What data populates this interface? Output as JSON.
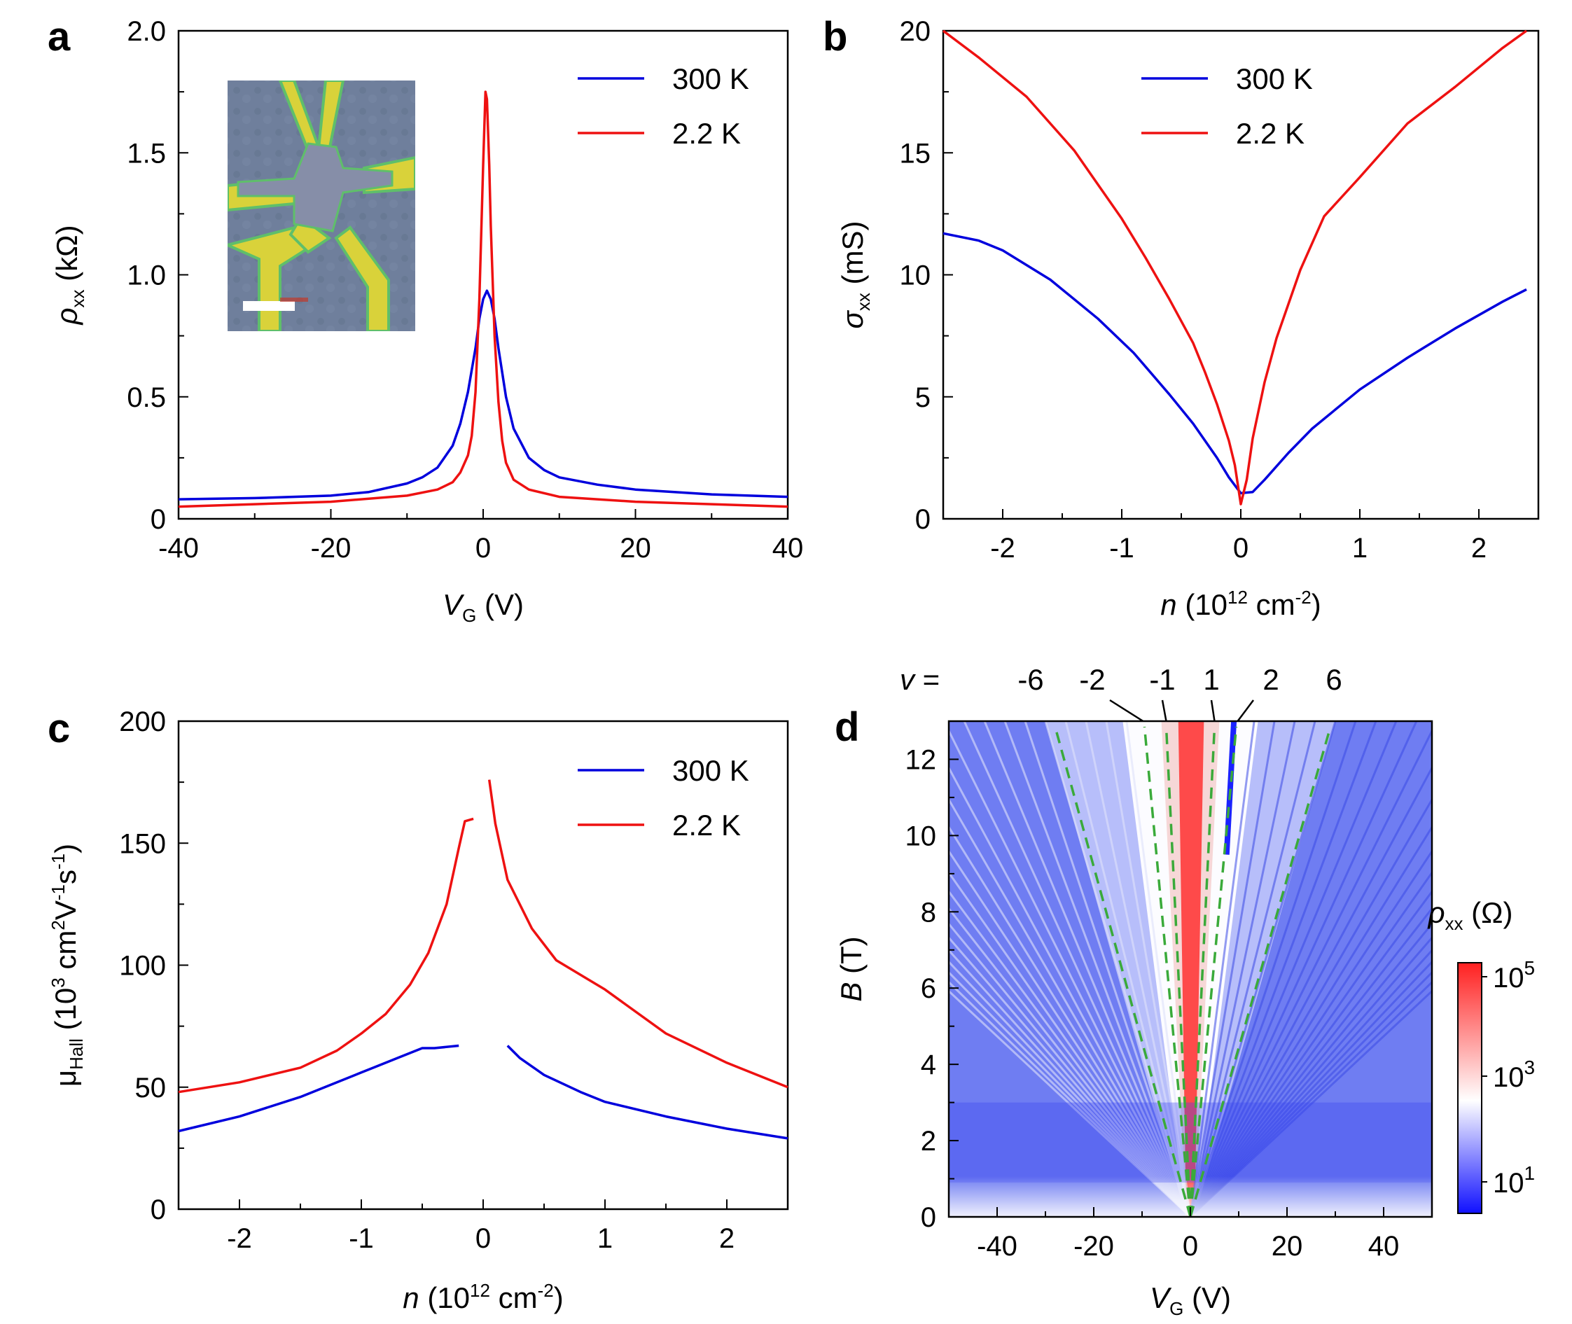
{
  "chart_data": [
    {
      "panel": "a",
      "type": "line",
      "xlabel_main": "V",
      "xlabel_sub": "G",
      "xlabel_unit": "(V)",
      "ylabel_main": "ρ",
      "ylabel_sub": "xx",
      "ylabel_unit": "(kΩ)",
      "xlim": [
        -40,
        40
      ],
      "ylim": [
        0,
        2.0
      ],
      "xticks": [
        "-40",
        "-20",
        "0",
        "20",
        "40"
      ],
      "yticks": [
        "0",
        "0.5",
        "1.0",
        "1.5",
        "2.0"
      ],
      "legend_position": "top-right",
      "inset": "optical image of device",
      "series": [
        {
          "name": "300 K",
          "color": "#0000dd",
          "x": [
            -40,
            -30,
            -20,
            -15,
            -10,
            -8,
            -6,
            -4,
            -3,
            -2,
            -1,
            -0.5,
            0,
            0.5,
            1,
            1.5,
            2,
            3,
            4,
            6,
            8,
            10,
            15,
            20,
            30,
            40
          ],
          "y": [
            0.08,
            0.085,
            0.095,
            0.11,
            0.145,
            0.17,
            0.21,
            0.3,
            0.39,
            0.52,
            0.7,
            0.82,
            0.9,
            0.935,
            0.9,
            0.82,
            0.7,
            0.5,
            0.37,
            0.25,
            0.2,
            0.17,
            0.14,
            0.12,
            0.1,
            0.09
          ]
        },
        {
          "name": "2.2 K",
          "color": "#ee1111",
          "x": [
            -40,
            -30,
            -20,
            -10,
            -6,
            -4,
            -3,
            -2,
            -1.5,
            -1,
            -0.5,
            0,
            0.3,
            0.5,
            0.8,
            1,
            1.5,
            2,
            2.5,
            3,
            4,
            6,
            10,
            20,
            30,
            40
          ],
          "y": [
            0.05,
            0.06,
            0.07,
            0.095,
            0.12,
            0.15,
            0.19,
            0.26,
            0.34,
            0.52,
            0.9,
            1.45,
            1.75,
            1.72,
            1.45,
            1.2,
            0.75,
            0.48,
            0.32,
            0.23,
            0.16,
            0.12,
            0.09,
            0.07,
            0.06,
            0.05
          ]
        }
      ]
    },
    {
      "panel": "b",
      "type": "line",
      "xlabel_main": "n",
      "xlabel_unit_pre": "(10",
      "xlabel_exp": "12",
      "xlabel_unit_post": " cm",
      "xlabel_exp2": "-2",
      "xlabel_close": ")",
      "ylabel_main": "σ",
      "ylabel_sub": "xx",
      "ylabel_unit": "(mS)",
      "xlim": [
        -2.5,
        2.5
      ],
      "ylim": [
        0,
        20
      ],
      "xticks": [
        "-2",
        "-1",
        "0",
        "1",
        "2"
      ],
      "yticks": [
        "0",
        "5",
        "10",
        "15",
        "20"
      ],
      "legend_position": "top-center",
      "series": [
        {
          "name": "300 K",
          "color": "#0000dd",
          "x": [
            -2.5,
            -2.2,
            -2,
            -1.6,
            -1.2,
            -0.9,
            -0.6,
            -0.4,
            -0.2,
            -0.1,
            0,
            0.1,
            0.2,
            0.4,
            0.6,
            1,
            1.4,
            1.8,
            2.2,
            2.4
          ],
          "y": [
            11.7,
            11.4,
            11.0,
            9.8,
            8.2,
            6.8,
            5.1,
            3.9,
            2.5,
            1.7,
            1.05,
            1.1,
            1.6,
            2.7,
            3.7,
            5.3,
            6.6,
            7.8,
            8.9,
            9.4
          ]
        },
        {
          "name": "2.2 K",
          "color": "#ee1111",
          "x": [
            -2.5,
            -2.2,
            -1.8,
            -1.4,
            -1.0,
            -0.8,
            -0.6,
            -0.4,
            -0.3,
            -0.2,
            -0.1,
            -0.05,
            0,
            0.05,
            0.1,
            0.2,
            0.3,
            0.5,
            0.7,
            1.0,
            1.4,
            1.8,
            2.2,
            2.4
          ],
          "y": [
            20,
            18.9,
            17.3,
            15.1,
            12.3,
            10.7,
            9.0,
            7.2,
            6.0,
            4.7,
            3.2,
            2.2,
            0.6,
            1.6,
            3.3,
            5.6,
            7.4,
            10.2,
            12.4,
            14.0,
            16.2,
            17.7,
            19.3,
            20
          ]
        }
      ]
    },
    {
      "panel": "c",
      "type": "line",
      "xlabel_main": "n",
      "xlabel_unit_pre": "(10",
      "xlabel_exp": "12",
      "xlabel_unit_post": " cm",
      "xlabel_exp2": "-2",
      "xlabel_close": ")",
      "ylabel_main": "μ",
      "ylabel_sub": "Hall",
      "ylabel_unit_pre": "(10",
      "ylabel_exp": "3",
      "ylabel_unit_mid": " cm",
      "ylabel_exp2": "2",
      "ylabel_unit_mid2": "V",
      "ylabel_exp3": "-1",
      "ylabel_unit_mid3": "s",
      "ylabel_exp4": "-1",
      "ylabel_close": ")",
      "xlim": [
        -2.5,
        2.5
      ],
      "ylim": [
        0,
        200
      ],
      "xticks": [
        "-2",
        "-1",
        "0",
        "1",
        "2"
      ],
      "yticks": [
        "0",
        "50",
        "100",
        "150",
        "200"
      ],
      "legend_position": "top-right",
      "series": [
        {
          "name": "300 K",
          "color": "#0000dd",
          "segments": [
            {
              "x": [
                -2.5,
                -2,
                -1.5,
                -1,
                -0.7,
                -0.5,
                -0.4,
                -0.2
              ],
              "y": [
                32,
                38,
                46,
                56,
                62,
                66,
                66,
                67
              ]
            },
            {
              "x": [
                0.2,
                0.3,
                0.5,
                0.8,
                1,
                1.5,
                2,
                2.5
              ],
              "y": [
                67,
                62,
                55,
                48,
                44,
                38,
                33,
                29
              ]
            }
          ]
        },
        {
          "name": "2.2 K",
          "color": "#ee1111",
          "segments": [
            {
              "x": [
                -2.5,
                -2,
                -1.5,
                -1.2,
                -1,
                -0.8,
                -0.6,
                -0.45,
                -0.3,
                -0.2,
                -0.15,
                -0.08
              ],
              "y": [
                48,
                52,
                58,
                65,
                72,
                80,
                92,
                105,
                125,
                148,
                159,
                160
              ]
            },
            {
              "x": [
                0.05,
                0.1,
                0.2,
                0.4,
                0.6,
                1,
                1.5,
                2,
                2.5
              ],
              "y": [
                176,
                158,
                135,
                115,
                102,
                90,
                72,
                60,
                50
              ]
            }
          ]
        }
      ]
    },
    {
      "panel": "d",
      "type": "heatmap",
      "xlabel_main": "V",
      "xlabel_sub": "G",
      "xlabel_unit": "(V)",
      "ylabel_main": "B",
      "ylabel_unit": "(T)",
      "xlim": [
        -50,
        50
      ],
      "ylim": [
        0,
        13
      ],
      "xticks": [
        "-40",
        "-20",
        "0",
        "20",
        "40"
      ],
      "yticks": [
        "0",
        "2",
        "4",
        "6",
        "8",
        "10",
        "12"
      ],
      "nu_prefix": "v =",
      "filling_factors": [
        {
          "label": "-6",
          "vg_at_top": -28
        },
        {
          "label": "-2",
          "vg_at_top": -9.5
        },
        {
          "label": "-1",
          "vg_at_top": -5
        },
        {
          "label": "1",
          "vg_at_top": 5
        },
        {
          "label": "2",
          "vg_at_top": 9.5
        },
        {
          "label": "6",
          "vg_at_top": 29
        }
      ],
      "colorbar": {
        "label_main": "ρ",
        "label_sub": "xx",
        "label_unit": "(Ω)",
        "scale": "log",
        "ticks": [
          {
            "base": "10",
            "exp": "5"
          },
          {
            "base": "10",
            "exp": "3"
          },
          {
            "base": "10",
            "exp": "1"
          }
        ],
        "colors": [
          "#1010ff",
          "#ffffff",
          "#ff2020"
        ]
      }
    }
  ]
}
